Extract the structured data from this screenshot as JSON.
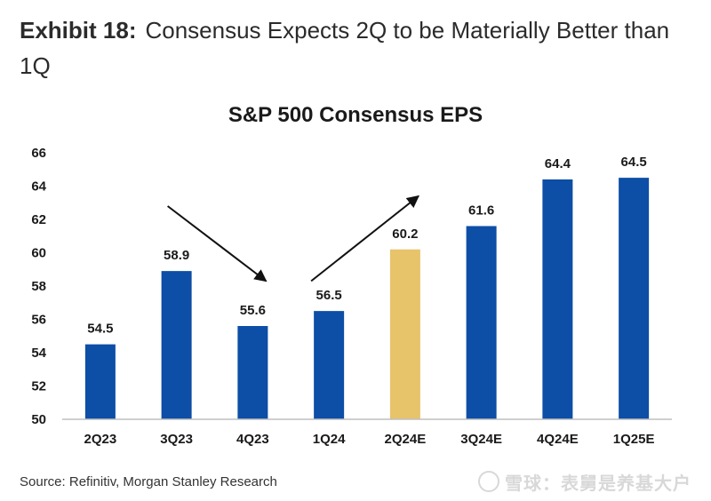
{
  "header": {
    "exhibit_number": "Exhibit 18:",
    "exhibit_title": "Consensus Expects 2Q to be Materially Better than 1Q"
  },
  "footer": {
    "source": "Source: Refinitiv, Morgan Stanley Research",
    "watermark": "雪球：表舅是养基大户"
  },
  "colors": {
    "bar": "#0d4ea6",
    "highlight_bar": "#e7c36a",
    "axis": "#bfbfbf",
    "text": "#1a1a1a"
  },
  "chart_data": {
    "type": "bar",
    "title": "S&P 500 Consensus EPS",
    "xlabel": "",
    "ylabel": "",
    "categories": [
      "2Q23",
      "3Q23",
      "4Q23",
      "1Q24",
      "2Q24E",
      "3Q24E",
      "4Q24E",
      "1Q25E"
    ],
    "values": [
      54.5,
      58.9,
      55.6,
      56.5,
      60.2,
      61.6,
      64.4,
      64.5
    ],
    "value_labels": [
      "54.5",
      "58.9",
      "55.6",
      "56.5",
      "60.2",
      "61.6",
      "64.4",
      "64.5"
    ],
    "highlight_index": 4,
    "ylim": [
      50,
      66
    ],
    "yticks": [
      50,
      52,
      54,
      56,
      58,
      60,
      62,
      64,
      66
    ],
    "ytick_labels": [
      "50",
      "52",
      "54",
      "56",
      "58",
      "60",
      "62",
      "64",
      "66"
    ],
    "grid": false,
    "legend": "none",
    "annotations": [
      {
        "type": "arrow",
        "direction": "down",
        "from_category": "3Q23",
        "to_category": "4Q23"
      },
      {
        "type": "arrow",
        "direction": "up",
        "from_category": "1Q24",
        "to_category": "2Q24E"
      }
    ]
  }
}
